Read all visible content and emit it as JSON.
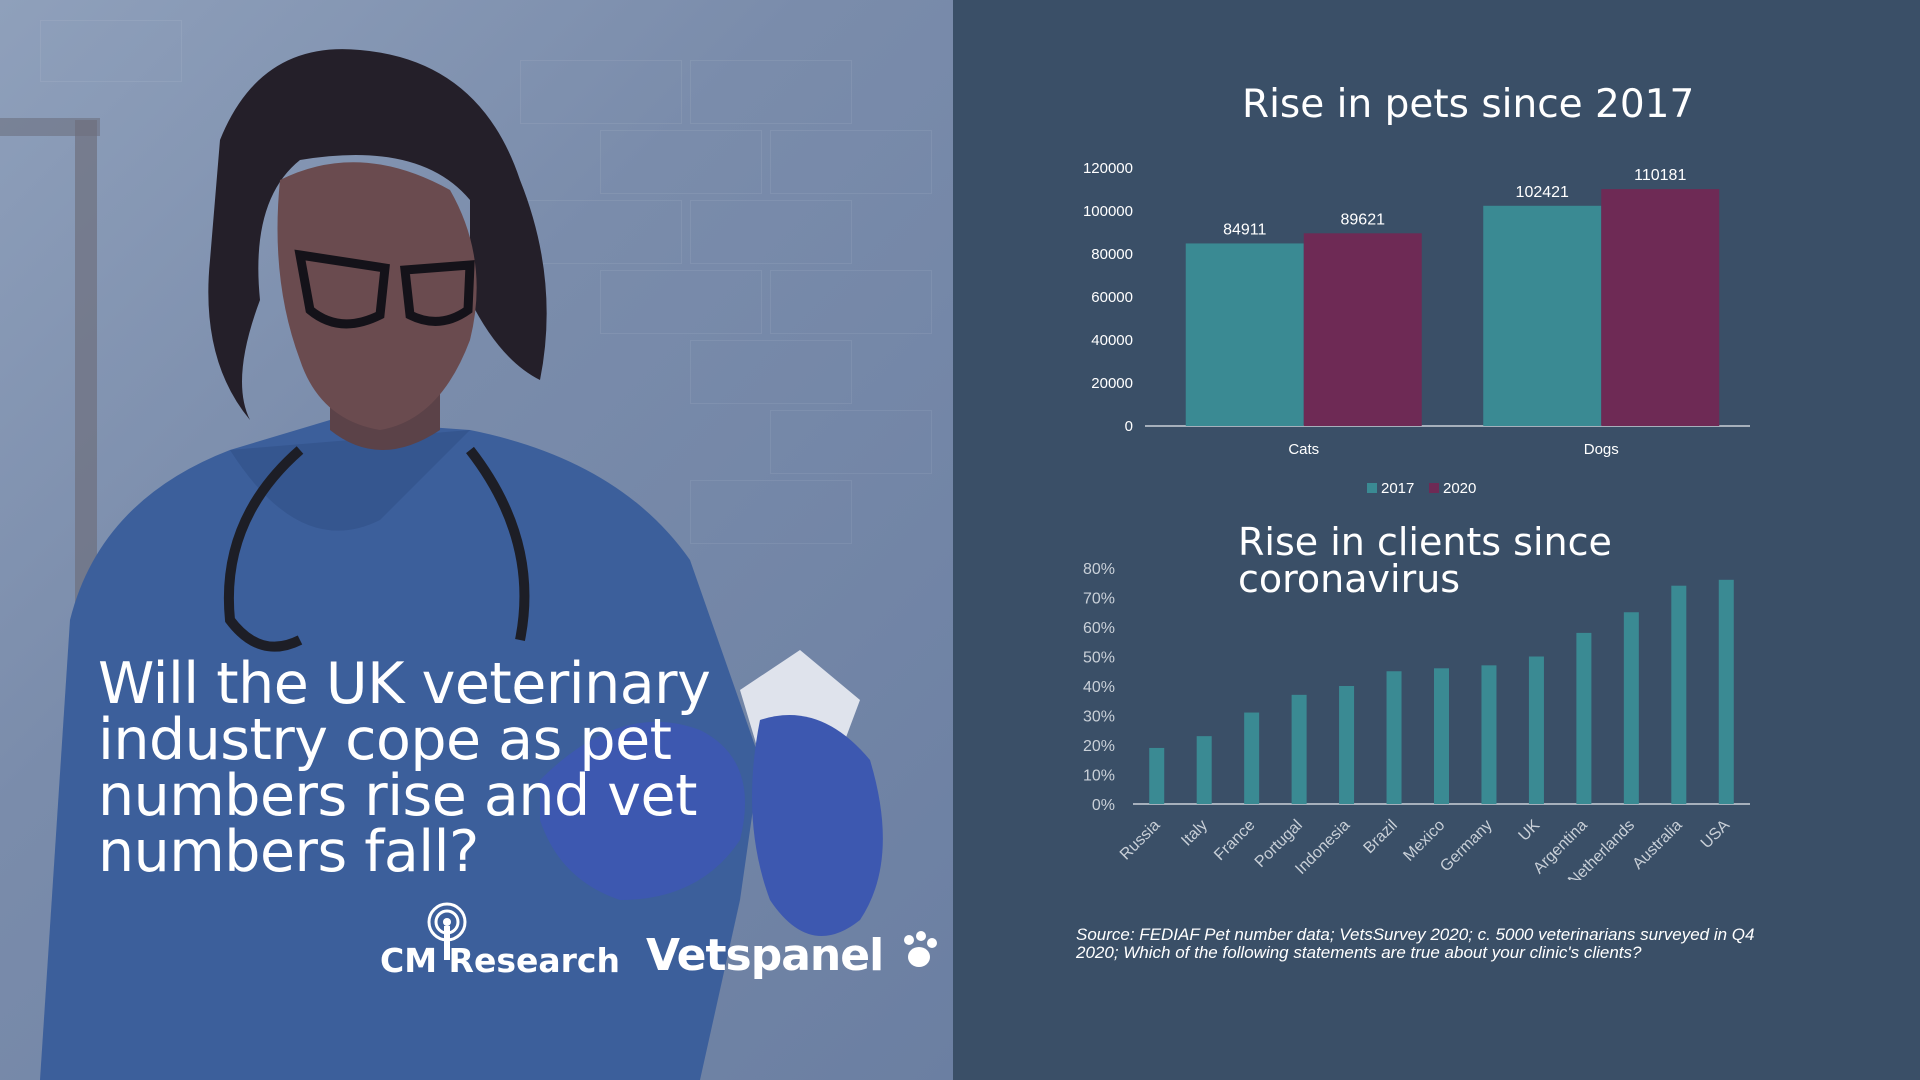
{
  "headline": "Will the UK veterinary industry cope as pet numbers rise and vet numbers fall?",
  "logos": {
    "cm": "CM Research",
    "vets": "Vetspanel"
  },
  "source": "Source: FEDIAF Pet number data; VetsSurvey 2020; c. 5000 veterinarians surveyed in Q4 2020; Which of the following statements are true about your clinic's clients?",
  "colors": {
    "teal": "#3a8a93",
    "plum": "#6e2a55",
    "background": "#3a4f67"
  },
  "chart_data": [
    {
      "type": "bar",
      "title": "Rise in pets since 2017",
      "categories": [
        "Cats",
        "Dogs"
      ],
      "series": [
        {
          "name": "2017",
          "values": [
            84911,
            102421
          ],
          "color": "#3a8a93"
        },
        {
          "name": "2020",
          "values": [
            89621,
            110181
          ],
          "color": "#6e2a55"
        }
      ],
      "yticks": [
        "0",
        "20000",
        "40000",
        "60000",
        "80000",
        "100000",
        "120000"
      ],
      "ylim": [
        0,
        120000
      ],
      "legend": "bottom",
      "grid": false
    },
    {
      "type": "bar",
      "title": "Rise in clients since coronavirus",
      "categories": [
        "Russia",
        "Italy",
        "France",
        "Portugal",
        "Indonesia",
        "Brazil",
        "Mexico",
        "Germany",
        "UK",
        "Argentina",
        "Netherlands",
        "Australia",
        "USA"
      ],
      "values": [
        0.19,
        0.23,
        0.31,
        0.37,
        0.4,
        0.45,
        0.46,
        0.47,
        0.5,
        0.58,
        0.65,
        0.74,
        0.76
      ],
      "yticks": [
        "0%",
        "10%",
        "20%",
        "30%",
        "40%",
        "50%",
        "60%",
        "70%",
        "80%"
      ],
      "ylim": [
        0,
        0.8
      ],
      "color": "#3a8a93",
      "grid": false
    }
  ]
}
